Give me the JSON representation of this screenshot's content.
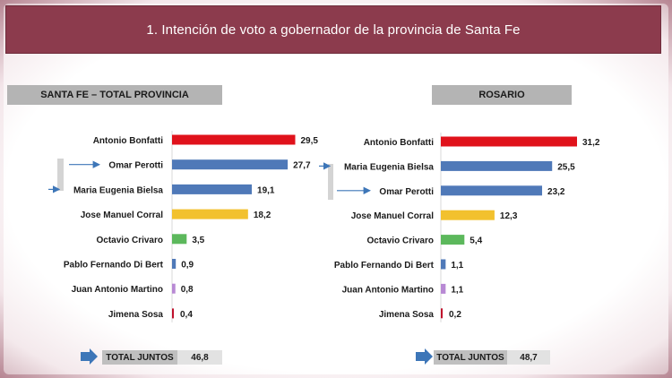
{
  "title": "1. Intención de voto a gobernador de la provincia de Santa Fe",
  "colors": {
    "red": "#e0121b",
    "blue": "#4f79b8",
    "yellow": "#f2c12e",
    "green": "#5cb85c",
    "purple": "#b889d4",
    "crimson": "#c0102c",
    "arrow": "#3d76b8"
  },
  "chart_data": [
    {
      "type": "bar",
      "title": "SANTA FE – TOTAL PROVINCIA",
      "categories": [
        "Antonio Bonfatti",
        "Omar Perotti",
        "Maria Eugenia Bielsa",
        "Jose Manuel Corral",
        "Octavio Crivaro",
        "Pablo Fernando Di Bert",
        "Juan Antonio Martino",
        "Jimena Sosa"
      ],
      "values": [
        29.5,
        27.7,
        19.1,
        18.2,
        3.5,
        0.9,
        0.8,
        0.4
      ],
      "value_labels": [
        "29,5",
        "27,7",
        "19,1",
        "18,2",
        "3,5",
        "0,9",
        "0,8",
        "0,4"
      ],
      "bar_colors": [
        "red",
        "blue",
        "blue",
        "yellow",
        "green",
        "blue",
        "purple",
        "crimson"
      ],
      "arrows_at": [
        1,
        2
      ],
      "total_label": "TOTAL JUNTOS",
      "total_value": "46,8"
    },
    {
      "type": "bar",
      "title": "ROSARIO",
      "categories": [
        "Antonio Bonfatti",
        "Maria Eugenia Bielsa",
        "Omar Perotti",
        "Jose Manuel Corral",
        "Octavio Crivaro",
        "Pablo Fernando Di Bert",
        "Juan Antonio Martino",
        "Jimena Sosa"
      ],
      "values": [
        31.2,
        25.5,
        23.2,
        12.3,
        5.4,
        1.1,
        1.1,
        0.2
      ],
      "value_labels": [
        "31,2",
        "25,5",
        "23,2",
        "12,3",
        "5,4",
        "1,1",
        "1,1",
        "0,2"
      ],
      "bar_colors": [
        "red",
        "blue",
        "blue",
        "yellow",
        "green",
        "blue",
        "purple",
        "crimson"
      ],
      "arrows_at": [
        1,
        2
      ],
      "total_label": "TOTAL JUNTOS",
      "total_value": "48,7"
    }
  ]
}
